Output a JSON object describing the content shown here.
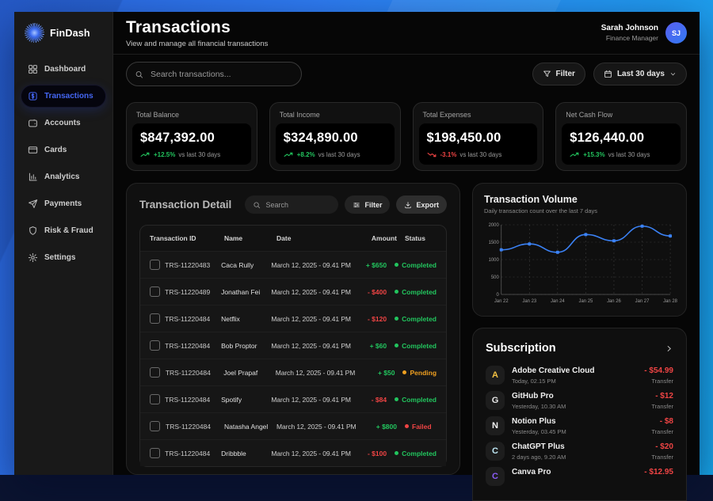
{
  "app": {
    "brand": "FinDash"
  },
  "sidebar": {
    "items": [
      {
        "label": "Dashboard",
        "icon": "dashboard",
        "active": false
      },
      {
        "label": "Transactions",
        "icon": "transactions",
        "active": true
      },
      {
        "label": "Accounts",
        "icon": "accounts",
        "active": false
      },
      {
        "label": "Cards",
        "icon": "cards",
        "active": false
      },
      {
        "label": "Analytics",
        "icon": "analytics",
        "active": false
      },
      {
        "label": "Payments",
        "icon": "payments",
        "active": false
      },
      {
        "label": "Risk & Fraud",
        "icon": "risk",
        "active": false
      },
      {
        "label": "Settings",
        "icon": "settings",
        "active": false
      }
    ]
  },
  "header": {
    "title": "Transactions",
    "subtitle": "View and manage all financial transactions",
    "user": {
      "name": "Sarah Johnson",
      "role": "Finance Manager",
      "initials": "SJ"
    },
    "search_placeholder": "Search transactions...",
    "filter_label": "Filter",
    "range_label": "Last 30 days"
  },
  "stats": [
    {
      "label": "Total Balance",
      "value": "$847,392.00",
      "change": "+12.5%",
      "vs": "vs last 30 days",
      "direction": "up"
    },
    {
      "label": "Total Income",
      "value": "$324,890.00",
      "change": "+8.2%",
      "vs": "vs last 30 days",
      "direction": "up"
    },
    {
      "label": "Total Expenses",
      "value": "$198,450.00",
      "change": "-3.1%",
      "vs": "vs last 30 days",
      "direction": "down"
    },
    {
      "label": "Net Cash Flow",
      "value": "$126,440.00",
      "change": "+15.3%",
      "vs": "vs last 30 days",
      "direction": "up"
    }
  ],
  "transactions": {
    "title": "Transaction Detail",
    "search_label": "Search",
    "filter_label": "Filter",
    "export_label": "Export",
    "columns": [
      "Transaction ID",
      "Name",
      "Date",
      "Amount",
      "Status"
    ],
    "rows": [
      {
        "id": "TRS-11220483",
        "name": "Caca Rully",
        "date": "March 12, 2025 - 09.41 PM",
        "amount": "+ $650",
        "positive": true,
        "status": "Completed"
      },
      {
        "id": "TRS-11220489",
        "name": "Jonathan Fei",
        "date": "March 12, 2025 - 09.41 PM",
        "amount": "- $400",
        "positive": false,
        "status": "Completed"
      },
      {
        "id": "TRS-11220484",
        "name": "Netflix",
        "date": "March 12, 2025 - 09.41 PM",
        "amount": "- $120",
        "positive": false,
        "status": "Completed"
      },
      {
        "id": "TRS-11220484",
        "name": "Bob Proptor",
        "date": "March 12, 2025 - 09.41 PM",
        "amount": "+ $60",
        "positive": true,
        "status": "Completed"
      },
      {
        "id": "TRS-11220484",
        "name": "Joel Prapaf",
        "date": "March 12, 2025 - 09.41 PM",
        "amount": "+ $50",
        "positive": true,
        "status": "Pending"
      },
      {
        "id": "TRS-11220484",
        "name": "Spotify",
        "date": "March 12, 2025 - 09.41 PM",
        "amount": "- $84",
        "positive": false,
        "status": "Completed"
      },
      {
        "id": "TRS-11220484",
        "name": "Natasha Angel",
        "date": "March 12, 2025 - 09.41 PM",
        "amount": "+ $800",
        "positive": true,
        "status": "Failed"
      },
      {
        "id": "TRS-11220484",
        "name": "Dribbble",
        "date": "March 12, 2025 - 09.41 PM",
        "amount": "- $100",
        "positive": false,
        "status": "Completed"
      }
    ]
  },
  "chart_data": {
    "type": "line",
    "title": "Transaction Volume",
    "subtitle": "Daily transaction count over the last 7 days",
    "x": [
      "Jan 22",
      "Jan 23",
      "Jan 24",
      "Jan 25",
      "Jan 26",
      "Jan 27",
      "Jan 28"
    ],
    "values": [
      1280,
      1450,
      1210,
      1720,
      1540,
      1960,
      1680
    ],
    "ylim": [
      0,
      2000
    ],
    "yticks": [
      0,
      500,
      1000,
      1500,
      2000
    ],
    "grid": true,
    "legend": "none",
    "line_color": "#3b82f6"
  },
  "subscriptions": {
    "title": "Subscription",
    "items": [
      {
        "name": "Adobe Creative Cloud",
        "time": "Today, 02.15 PM",
        "amount": "- $54.99",
        "method": "Transfer",
        "icon": "adobe-icon",
        "icon_color": "#f5c243"
      },
      {
        "name": "GitHub Pro",
        "time": "Yesterday, 10.30 AM",
        "amount": "- $12",
        "method": "Transfer",
        "icon": "github-icon",
        "icon_color": "#e6e6e6"
      },
      {
        "name": "Notion Plus",
        "time": "Yesterday, 03.45 PM",
        "amount": "- $8",
        "method": "Transfer",
        "icon": "notion-icon",
        "icon_color": "#f5f5f5"
      },
      {
        "name": "ChatGPT Plus",
        "time": "2 days ago, 9.20 AM",
        "amount": "- $20",
        "method": "Transfer",
        "icon": "chatgpt-icon",
        "icon_color": "#bfe8f5"
      },
      {
        "name": "Canva Pro",
        "time": "",
        "amount": "- $12.95",
        "method": "",
        "icon": "canva-icon",
        "icon_color": "#8b5cf6"
      }
    ]
  },
  "colors": {
    "accent_blue": "#3b82f6",
    "positive": "#22c55e",
    "negative": "#ef4444",
    "pending": "#f0a020",
    "active_nav": "#4466f2"
  }
}
